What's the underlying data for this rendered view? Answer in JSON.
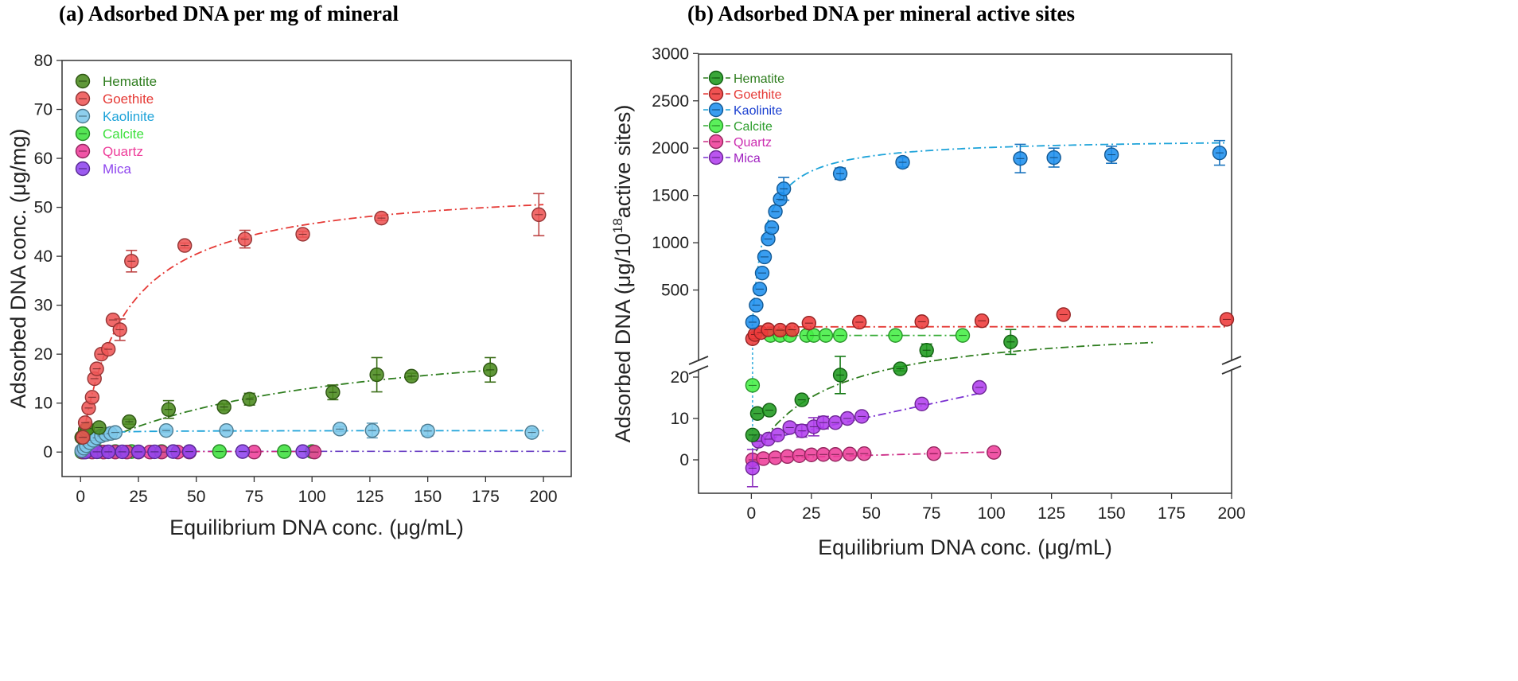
{
  "chart_data": [
    {
      "type": "scatter",
      "panel": "a",
      "title": "(a) Adsorbed DNA per mg of mineral",
      "xlabel": "Equilibrium DNA conc. (μg/mL)",
      "ylabel": "Adsorbed DNA conc. (μg/mg)",
      "xlim": [
        -8,
        212
      ],
      "ylim": [
        -5,
        80
      ],
      "xticks": [
        0,
        25,
        50,
        75,
        100,
        125,
        150,
        175,
        200
      ],
      "yticks": [
        0,
        10,
        20,
        30,
        40,
        50,
        60,
        70,
        80
      ],
      "legend_position": "top-left",
      "series": [
        {
          "name": "Hematite",
          "color": "#4a8a1e",
          "fit_color": "#2e7d1e",
          "x": [
            0.5,
            2,
            3,
            8,
            21,
            38,
            62,
            73,
            109,
            128,
            143,
            177
          ],
          "y": [
            3,
            4.5,
            4.8,
            5,
            6.2,
            8.7,
            9.2,
            10.8,
            12.2,
            15.8,
            15.5,
            16.8
          ],
          "yerr": [
            0,
            0,
            0,
            0,
            0.5,
            1.8,
            0.6,
            1.2,
            1.5,
            3.5,
            0.6,
            2.5
          ],
          "fit": {
            "qmax": 26.16,
            "k": 0.01,
            "xmax": 178
          }
        },
        {
          "name": "Goethite",
          "color": "#ee5555",
          "fit_color": "#e53935",
          "x": [
            1,
            2,
            3.5,
            5,
            6,
            7,
            9,
            12,
            14,
            17,
            22,
            45,
            71,
            96,
            130,
            198
          ],
          "y": [
            3,
            6,
            9,
            11.2,
            15,
            17,
            20,
            21,
            27,
            25,
            39,
            42.2,
            43.5,
            44.5,
            47.8,
            48.5
          ],
          "yerr": [
            0,
            0,
            0,
            0,
            0,
            0,
            0,
            0,
            0,
            2.2,
            2.2,
            0.5,
            1.8,
            0.6,
            0.5,
            4.3
          ],
          "fit": {
            "qmax": 55.14,
            "k": 0.055,
            "xmax": 200
          }
        },
        {
          "name": "Kaolinite",
          "color": "#7ec8ea",
          "fit_color": "#1ea3d9",
          "x": [
            0.5,
            1.5,
            2.5,
            4,
            5.5,
            7,
            9,
            11,
            13,
            15,
            37,
            63,
            112,
            126,
            150,
            195
          ],
          "y": [
            0.3,
            0.8,
            1.3,
            1.9,
            2.4,
            2.9,
            3.3,
            3.6,
            3.8,
            4.0,
            4.4,
            4.4,
            4.7,
            4.4,
            4.3,
            4.0
          ],
          "yerr": [
            0,
            0,
            0,
            0,
            0,
            0,
            0,
            0,
            0,
            0,
            0.3,
            0.2,
            0.5,
            1.5,
            1.0,
            0.8
          ],
          "fit": {
            "qmax": 4.4,
            "k": 0.8,
            "xmax": 200
          }
        },
        {
          "name": "Calcite",
          "color": "#3ee03e",
          "x": [
            0.5,
            3,
            8,
            15,
            22,
            35,
            60,
            88,
            100
          ],
          "y": [
            0,
            0.1,
            0.1,
            0.1,
            0.1,
            0.1,
            0.1,
            0.1,
            0.1
          ]
        },
        {
          "name": "Quartz",
          "color": "#ee3d9a",
          "x": [
            1,
            5,
            10,
            15,
            20,
            25,
            30,
            35,
            42,
            47,
            75,
            101
          ],
          "y": [
            0,
            0,
            0,
            0,
            0,
            0,
            0,
            0,
            0,
            0,
            0,
            0
          ]
        },
        {
          "name": "Mica",
          "color": "#8e44ee",
          "x": [
            2,
            7,
            12,
            18,
            25,
            32,
            40,
            47,
            70,
            96
          ],
          "y": [
            0,
            0.05,
            0.05,
            0.05,
            0.05,
            0.05,
            0.1,
            0.1,
            0.1,
            0.1
          ]
        }
      ]
    },
    {
      "type": "scatter",
      "panel": "b",
      "title": "(b) Adsorbed DNA per mineral active sites",
      "xlabel": "Equilibrium DNA conc. (μg/mL)",
      "ylabel_parts": [
        "Adsorbed DNA (μg/10",
        "18",
        "active sites)"
      ],
      "xlim": [
        -22,
        200
      ],
      "ylim_lower": [
        -8,
        30
      ],
      "ylim_upper": [
        0,
        3000
      ],
      "axis_break": "broken y-axis between 30 and upper segment",
      "xticks": [
        0,
        25,
        50,
        75,
        100,
        125,
        150,
        175,
        200
      ],
      "yticks_lower": [
        0,
        10,
        20
      ],
      "yticks_upper": [
        500,
        1000,
        1500,
        2000,
        2500,
        3000
      ],
      "legend_position": "top-left",
      "series": [
        {
          "name": "Hematite",
          "color": "#1e9a1e",
          "fit_color": "#2e7d1e",
          "segment": "lower",
          "x": [
            0.5,
            2.5,
            7.5,
            21,
            37,
            62,
            73,
            108
          ],
          "y": [
            6,
            11.2,
            12,
            14.5,
            20.5,
            22,
            26.5,
            28.5
          ],
          "yerr": [
            0,
            0,
            0,
            0,
            4.5,
            0.5,
            1.5,
            3
          ],
          "fit": {
            "qmax": 33.5,
            "k": 0.033,
            "xmin": 2,
            "xmax": 168
          }
        },
        {
          "name": "Goethite",
          "color": "#ee3a3a",
          "fit_color": "#e53935",
          "segment": "upper",
          "x": [
            0.5,
            1.5,
            4,
            7,
            12,
            17,
            24,
            45,
            71,
            96,
            130,
            198
          ],
          "y": [
            -15,
            30,
            50,
            80,
            75,
            80,
            150,
            160,
            165,
            175,
            240,
            190
          ],
          "fit": {
            "qmax": 112,
            "k": 3,
            "xmax": 198
          }
        },
        {
          "name": "Kaolinite",
          "color": "#1e90ee",
          "fit_color": "#1ea3d9",
          "segment": "upper",
          "x": [
            0.5,
            2,
            3.5,
            4.5,
            5.5,
            7,
            8.5,
            10,
            12,
            13.5,
            37,
            63,
            112,
            126,
            150,
            195
          ],
          "y": [
            160,
            340,
            510,
            680,
            850,
            1040,
            1160,
            1330,
            1460,
            1570,
            1730,
            1850,
            1890,
            1900,
            1930,
            1950
          ],
          "yerr": [
            0,
            0,
            0,
            0,
            0,
            0,
            0,
            0,
            0,
            120,
            60,
            50,
            150,
            100,
            90,
            130
          ],
          "fit": {
            "qmax": 2108,
            "k": 0.2,
            "xmax": 198
          }
        },
        {
          "name": "Calcite",
          "color": "#44ee44",
          "fit_color": "#33aa33",
          "segment": "mixed",
          "x_lower": [
            0.5
          ],
          "y_lower": [
            18
          ],
          "x": [
            8,
            12,
            16,
            23,
            26,
            31,
            37,
            60,
            88
          ],
          "y": [
            20,
            20,
            20,
            20,
            20,
            20,
            20,
            20,
            20
          ],
          "fit": {
            "qmax": 20,
            "k": 2,
            "xmin": 3,
            "xmax": 88
          }
        },
        {
          "name": "Quartz",
          "color": "#ee3d9a",
          "fit_color": "#cc2c86",
          "segment": "lower",
          "x": [
            0.5,
            5,
            10,
            15,
            20,
            25,
            30,
            35,
            41,
            47,
            76,
            101
          ],
          "y": [
            0,
            0.3,
            0.5,
            0.8,
            1.0,
            1.2,
            1.3,
            1.3,
            1.4,
            1.5,
            1.5,
            1.8
          ],
          "fit": {
            "slope": 0.016,
            "offset": 0.3,
            "xmin": 1,
            "xmax": 100
          }
        },
        {
          "name": "Mica",
          "color": "#b03dee",
          "fit_color": "#7a30d0",
          "segment": "lower",
          "x": [
            0.5,
            3,
            7,
            11,
            16,
            21,
            26,
            30,
            35,
            40,
            46,
            71,
            95
          ],
          "y": [
            -2,
            4.5,
            5,
            6,
            7.8,
            7,
            8,
            9,
            9,
            10,
            10.5,
            13.5,
            17.5
          ],
          "yerr": [
            4.5,
            0,
            0,
            0,
            0,
            1.5,
            2.2,
            1.5,
            0,
            0,
            0,
            0,
            0
          ],
          "fit": {
            "slope": 0.125,
            "offset": 4.2,
            "xmin": 1,
            "xmax": 95
          }
        }
      ]
    }
  ]
}
